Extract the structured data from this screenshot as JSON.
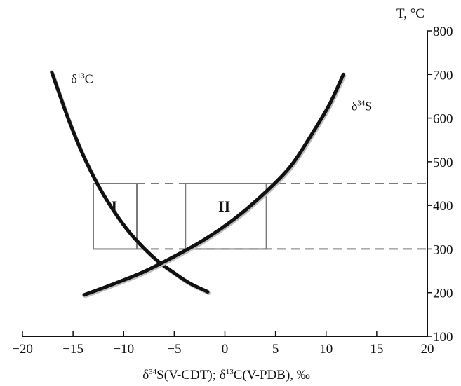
{
  "chart_data": {
    "type": "line",
    "title": "",
    "xlabel": {
      "parts": [
        {
          "text": "δ",
          "sup": false
        },
        {
          "text": "34",
          "sup": true
        },
        {
          "text": "S(V-CDT); δ",
          "sup": false
        },
        {
          "text": "13",
          "sup": true
        },
        {
          "text": "C(V-PDB), ‰",
          "sup": false
        }
      ]
    },
    "ylabel": "T, °C",
    "xlim": [
      -20,
      20
    ],
    "ylim": [
      100,
      800
    ],
    "x_ticks": [
      {
        "value": -20,
        "label": "−20"
      },
      {
        "value": -15,
        "label": "−15"
      },
      {
        "value": -10,
        "label": "−10"
      },
      {
        "value": -5,
        "label": "−5"
      },
      {
        "value": 0,
        "label": "0"
      },
      {
        "value": 5,
        "label": "5"
      },
      {
        "value": 10,
        "label": "10"
      },
      {
        "value": 15,
        "label": "15"
      },
      {
        "value": 20,
        "label": "20"
      }
    ],
    "y_ticks": [
      {
        "value": 100,
        "label": "100"
      },
      {
        "value": 200,
        "label": "200"
      },
      {
        "value": 300,
        "label": "300"
      },
      {
        "value": 400,
        "label": "400"
      },
      {
        "value": 500,
        "label": "500"
      },
      {
        "value": 600,
        "label": "600"
      },
      {
        "value": 700,
        "label": "700"
      },
      {
        "value": 800,
        "label": "800"
      }
    ],
    "series": [
      {
        "name_parts": [
          {
            "text": "δ",
            "sup": false
          },
          {
            "text": "13",
            "sup": true
          },
          {
            "text": "C",
            "sup": false
          }
        ],
        "label_anchor": {
          "x": -15.2,
          "y": 680
        },
        "x": [
          -17.1,
          -15.5,
          -14.0,
          -12.5,
          -11.0,
          -9.5,
          -8.0,
          -6.5,
          -5.0,
          -3.5,
          -1.7
        ],
        "y": [
          705,
          600,
          515,
          445,
          388,
          340,
          302,
          270,
          245,
          222,
          202
        ]
      },
      {
        "name_parts": [
          {
            "text": "δ",
            "sup": false
          },
          {
            "text": "34",
            "sup": true
          },
          {
            "text": "S",
            "sup": false
          }
        ],
        "label_anchor": {
          "x": 12.5,
          "y": 618
        },
        "x": [
          -13.9,
          -11.0,
          -8.0,
          -5.0,
          -2.0,
          1.0,
          4.0,
          6.5,
          8.5,
          10.3,
          11.7
        ],
        "y": [
          195,
          220,
          248,
          283,
          322,
          370,
          430,
          490,
          560,
          630,
          700
        ]
      }
    ],
    "boxes": [
      {
        "label": "I",
        "x": [
          -13,
          -8.7
        ],
        "y": [
          300,
          450
        ]
      },
      {
        "label": "II",
        "x": [
          -3.9,
          4.1
        ],
        "y": [
          300,
          450
        ]
      }
    ],
    "dashed_lines": [
      {
        "y": 450,
        "x_from": -8.7,
        "x_to": 20
      },
      {
        "y": 300,
        "x_from": -8.7,
        "x_to": 20
      }
    ],
    "grid": false
  }
}
